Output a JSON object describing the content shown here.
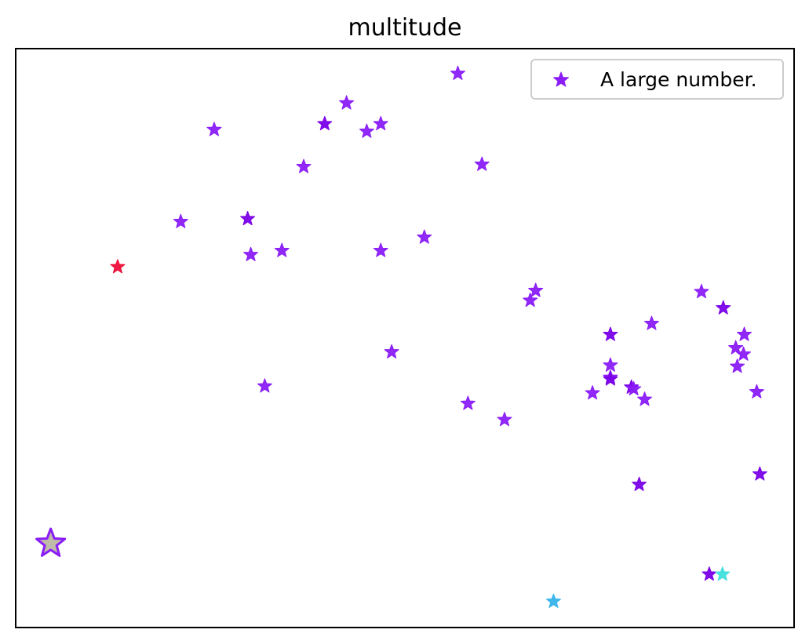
{
  "chart_data": {
    "type": "scatter",
    "title": "multitude",
    "xlabel": "",
    "ylabel": "",
    "xticks": false,
    "yticks": false,
    "grid": false,
    "xlim": [
      0,
      1
    ],
    "ylim": [
      0,
      1
    ],
    "legend": {
      "placement": "upper right",
      "entries": [
        "A large number."
      ]
    },
    "marker": "star",
    "series": [
      {
        "name": "A large number.",
        "color": "#8a1cf7",
        "points": [
          {
            "x": 0.568,
            "y": 0.957
          },
          {
            "x": 0.425,
            "y": 0.906
          },
          {
            "x": 0.397,
            "y": 0.87,
            "color": "#7a00e8"
          },
          {
            "x": 0.469,
            "y": 0.87
          },
          {
            "x": 0.451,
            "y": 0.857
          },
          {
            "x": 0.255,
            "y": 0.86
          },
          {
            "x": 0.37,
            "y": 0.796
          },
          {
            "x": 0.599,
            "y": 0.8
          },
          {
            "x": 0.212,
            "y": 0.701
          },
          {
            "x": 0.298,
            "y": 0.706,
            "color": "#7a00e8"
          },
          {
            "x": 0.525,
            "y": 0.674
          },
          {
            "x": 0.302,
            "y": 0.644
          },
          {
            "x": 0.342,
            "y": 0.651
          },
          {
            "x": 0.469,
            "y": 0.651
          },
          {
            "x": 0.131,
            "y": 0.623,
            "color": "#ef0f3a"
          },
          {
            "x": 0.661,
            "y": 0.565
          },
          {
            "x": 0.668,
            "y": 0.582
          },
          {
            "x": 0.881,
            "y": 0.58
          },
          {
            "x": 0.909,
            "y": 0.552,
            "color": "#7a00e8"
          },
          {
            "x": 0.817,
            "y": 0.525
          },
          {
            "x": 0.764,
            "y": 0.506,
            "color": "#7a00e8"
          },
          {
            "x": 0.936,
            "y": 0.506
          },
          {
            "x": 0.925,
            "y": 0.483
          },
          {
            "x": 0.935,
            "y": 0.472
          },
          {
            "x": 0.927,
            "y": 0.451
          },
          {
            "x": 0.483,
            "y": 0.476
          },
          {
            "x": 0.764,
            "y": 0.453
          },
          {
            "x": 0.764,
            "y": 0.432
          },
          {
            "x": 0.764,
            "y": 0.429,
            "color": "#7a00e8"
          },
          {
            "x": 0.32,
            "y": 0.417
          },
          {
            "x": 0.791,
            "y": 0.415,
            "color": "#7a00e8"
          },
          {
            "x": 0.794,
            "y": 0.412
          },
          {
            "x": 0.741,
            "y": 0.405
          },
          {
            "x": 0.808,
            "y": 0.394
          },
          {
            "x": 0.952,
            "y": 0.407
          },
          {
            "x": 0.581,
            "y": 0.387
          },
          {
            "x": 0.628,
            "y": 0.359
          },
          {
            "x": 0.956,
            "y": 0.265,
            "color": "#7a00e8"
          },
          {
            "x": 0.801,
            "y": 0.247,
            "color": "#7a00e8"
          },
          {
            "x": 0.045,
            "y": 0.145,
            "color": "#bdb6a4",
            "edge": "#8a1cf7",
            "large": true
          },
          {
            "x": 0.891,
            "y": 0.092,
            "color": "#7a00e8"
          },
          {
            "x": 0.908,
            "y": 0.092,
            "color": "#3fe0dc"
          },
          {
            "x": 0.691,
            "y": 0.045,
            "color": "#35b3ea"
          }
        ]
      }
    ]
  }
}
